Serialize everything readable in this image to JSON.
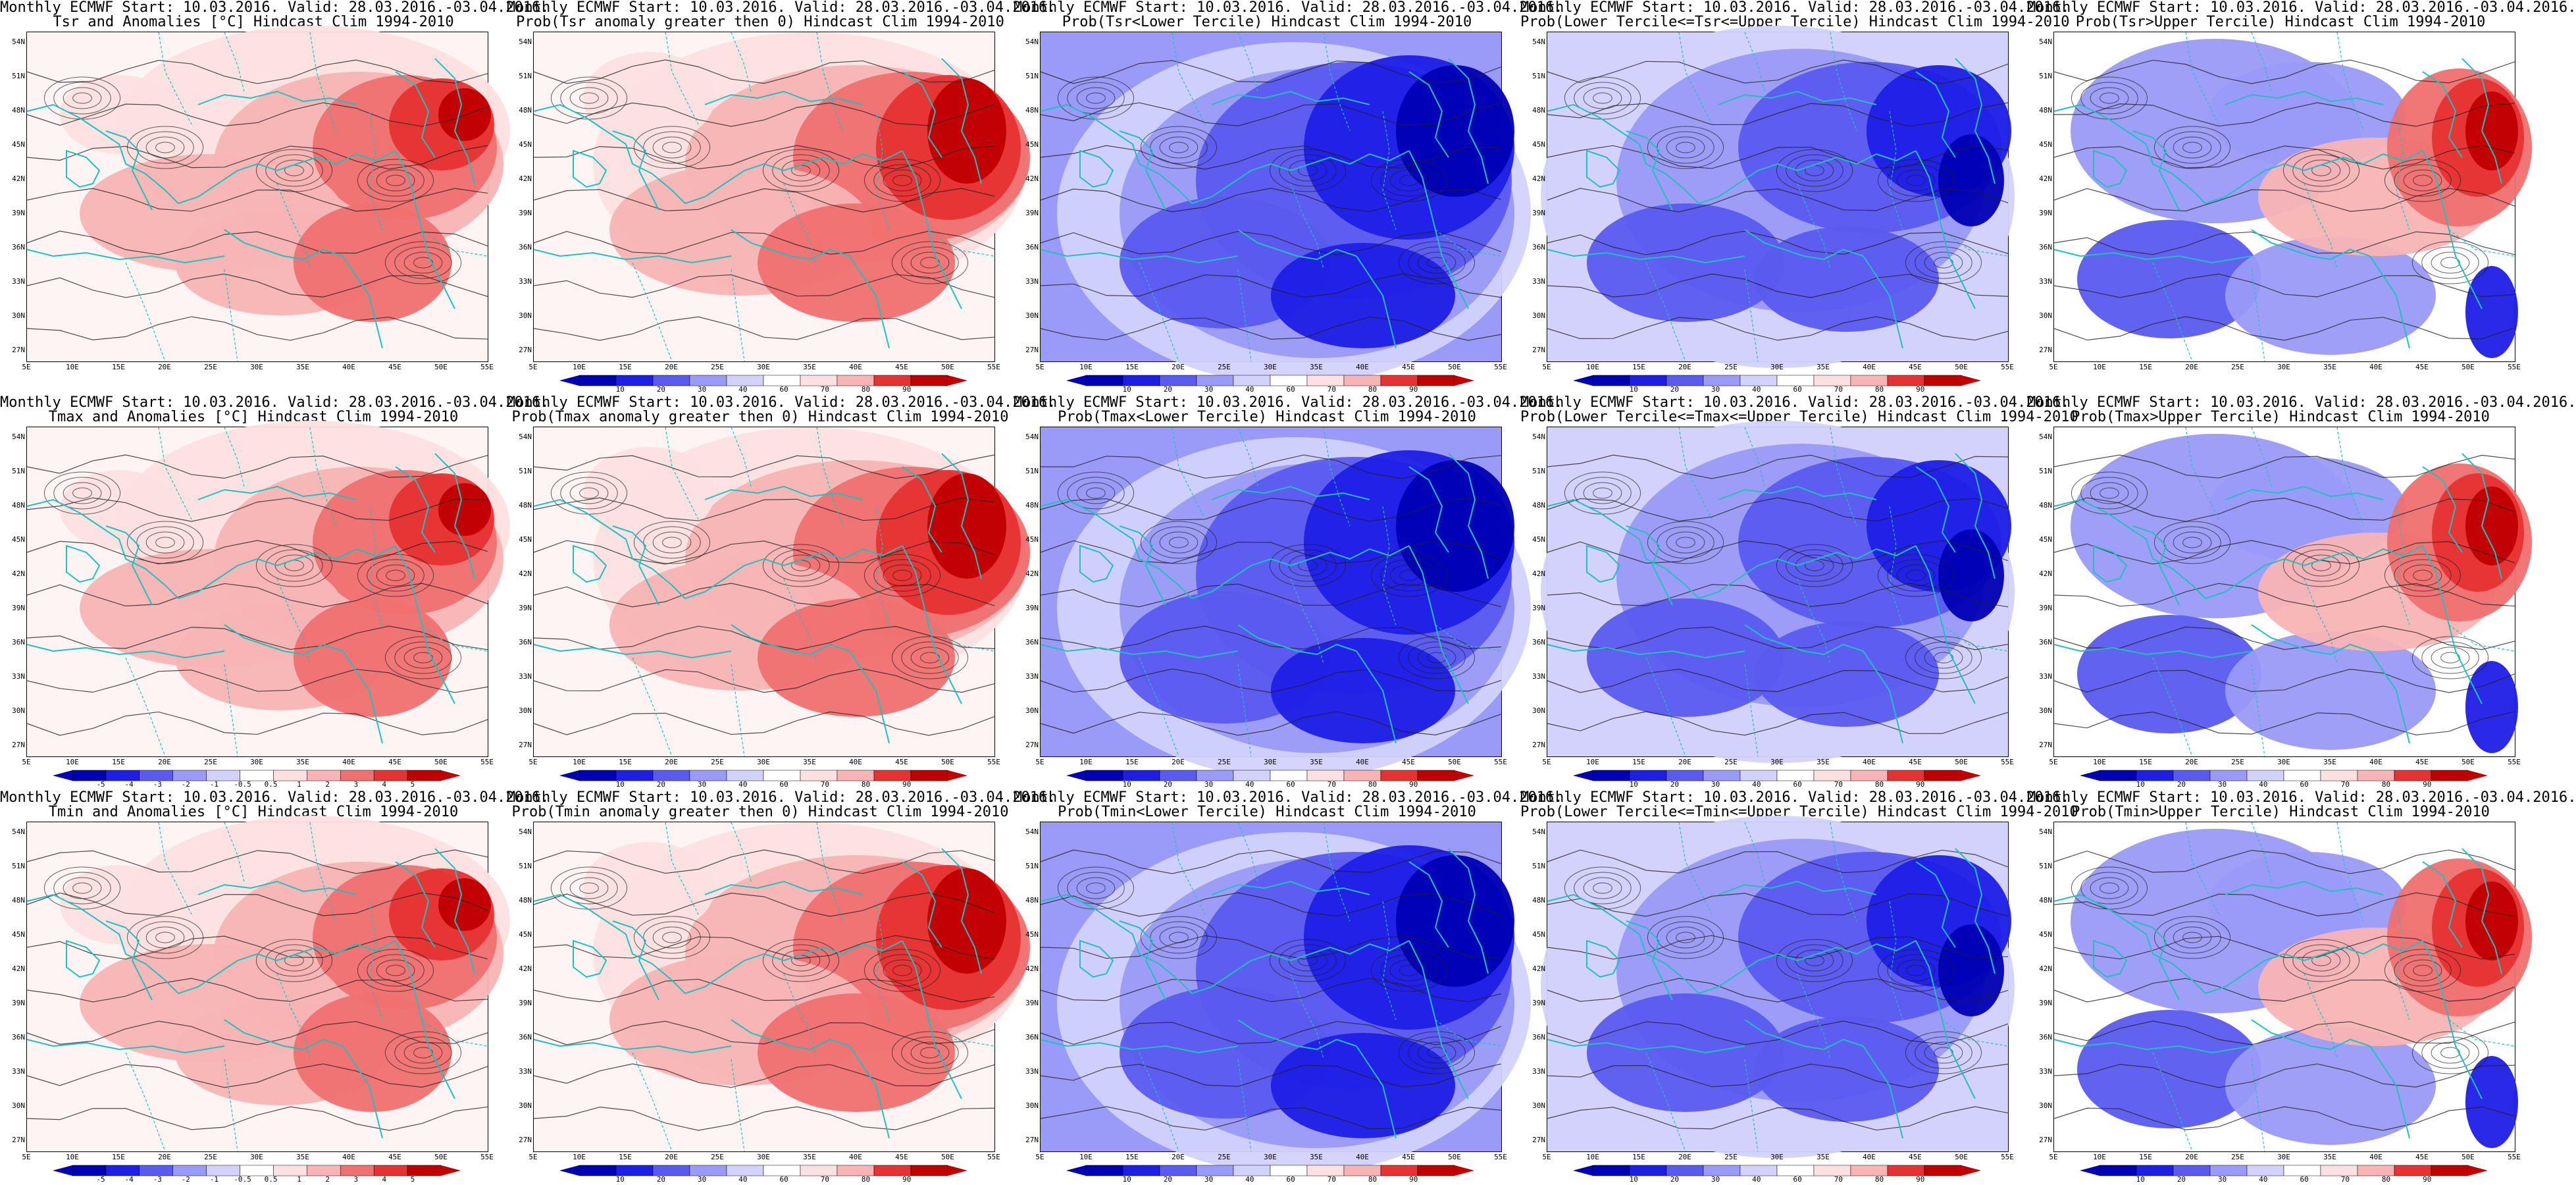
{
  "figure": {
    "line1_prefix": "Monthly ECMWF Start: 10.03.2016. Valid: 28.03.2016.-03.04.2016.",
    "lat_labels": [
      "54N",
      "51N",
      "48N",
      "45N",
      "42N",
      "39N",
      "36N",
      "33N",
      "30N",
      "27N"
    ],
    "lon_labels": [
      "5E",
      "10E",
      "15E",
      "20E",
      "25E",
      "30E",
      "35E",
      "40E",
      "45E",
      "50E",
      "55E"
    ],
    "anomaly_colorbar": [
      "-5",
      "-4",
      "-3",
      "-2",
      "-1",
      "-0.5",
      "0.5",
      "1",
      "2",
      "3",
      "4",
      "5"
    ],
    "prob_colorbar": [
      "10",
      "20",
      "30",
      "40",
      "60",
      "70",
      "80",
      "90"
    ],
    "colors": {
      "red_dark": "#c00000",
      "red": "#e63232",
      "red_mid": "#f07070",
      "red_light": "#f8b4b4",
      "red_pale": "#fde0e0",
      "blue_dark": "#0000b4",
      "blue": "#1e1ee6",
      "blue_mid": "#5a5af0",
      "blue_light": "#9a9af8",
      "blue_pale": "#d2d2fc",
      "coast": "#20c0c0",
      "contour": "#202020"
    }
  },
  "panels": [
    {
      "id": "tsr-anom",
      "line1": "Monthly ECMWF Start: 10.03.2016. Valid: 28.03.2016.-03.04.2016.",
      "line2": "Tsr and Anomalies [°C] Hindcast Clim 1994-2010",
      "scheme": "red",
      "colorbar": "none"
    },
    {
      "id": "tsr-prob-gt0",
      "line1": "Monthly ECMWF Start: 10.03.2016. Valid: 28.03.2016.-03.04.2016.",
      "line2": "Prob(Tsr anomaly greater then 0) Hindcast Clim 1994-2010",
      "scheme": "red-strong",
      "colorbar": "prob"
    },
    {
      "id": "tsr-lower",
      "line1": "Monthly ECMWF Start: 10.03.2016. Valid: 28.03.2016.-03.04.2016.",
      "line2": "Prob(Tsr<Lower Tercile) Hindcast Clim 1994-2010",
      "scheme": "blue-strong",
      "colorbar": "prob"
    },
    {
      "id": "tsr-middle",
      "line1": "Monthly ECMWF Start: 10.03.2016. Valid: 28.03.2016.-03.04.2016.",
      "line2": "Prob(Lower Tercile<=Tsr<=Upper Tercile) Hindcast Clim 1994-2010",
      "scheme": "blue",
      "colorbar": "prob"
    },
    {
      "id": "tsr-upper",
      "line1": "Monthly ECMWF Start: 10.03.2016. Valid: 28.03.2016.-03.04.2016.",
      "line2": "Prob(Tsr>Upper Tercile) Hindcast Clim 1994-2010",
      "scheme": "mixed",
      "colorbar": "none"
    },
    {
      "id": "tmax-anom",
      "line1": "Monthly ECMWF Start: 10.03.2016. Valid: 28.03.2016.-03.04.2016.",
      "line2": "Tmax and Anomalies [°C] Hindcast Clim 1994-2010",
      "scheme": "red",
      "colorbar": "anom"
    },
    {
      "id": "tmax-prob-gt0",
      "line1": "Monthly ECMWF Start: 10.03.2016. Valid: 28.03.2016.-03.04.2016.",
      "line2": "Prob(Tmax anomaly greater then 0) Hindcast Clim 1994-2010",
      "scheme": "red-strong",
      "colorbar": "prob"
    },
    {
      "id": "tmax-lower",
      "line1": "Monthly ECMWF Start: 10.03.2016. Valid: 28.03.2016.-03.04.2016.",
      "line2": "Prob(Tmax<Lower Tercile) Hindcast Clim 1994-2010",
      "scheme": "blue-strong",
      "colorbar": "prob"
    },
    {
      "id": "tmax-middle",
      "line1": "Monthly ECMWF Start: 10.03.2016. Valid: 28.03.2016.-03.04.2016.",
      "line2": "Prob(Lower Tercile<=Tmax<=Upper Tercile) Hindcast Clim 1994-2010",
      "scheme": "blue",
      "colorbar": "prob"
    },
    {
      "id": "tmax-upper",
      "line1": "Monthly ECMWF Start: 10.03.2016. Valid: 28.03.2016.-03.04.2016.",
      "line2": "Prob(Tmax>Upper Tercile) Hindcast Clim 1994-2010",
      "scheme": "mixed",
      "colorbar": "prob"
    },
    {
      "id": "tmin-anom",
      "line1": "Monthly ECMWF Start: 10.03.2016. Valid: 28.03.2016.-03.04.2016.",
      "line2": "Tmin and Anomalies [°C] Hindcast Clim 1994-2010",
      "scheme": "red",
      "colorbar": "anom"
    },
    {
      "id": "tmin-prob-gt0",
      "line1": "Monthly ECMWF Start: 10.03.2016. Valid: 28.03.2016.-03.04.2016.",
      "line2": "Prob(Tmin anomaly greater then 0) Hindcast Clim 1994-2010",
      "scheme": "red-strong",
      "colorbar": "prob"
    },
    {
      "id": "tmin-lower",
      "line1": "Monthly ECMWF Start: 10.03.2016. Valid: 28.03.2016.-03.04.2016.",
      "line2": "Prob(Tmin<Lower Tercile) Hindcast Clim 1994-2010",
      "scheme": "blue-strong",
      "colorbar": "prob"
    },
    {
      "id": "tmin-middle",
      "line1": "Monthly ECMWF Start: 10.03.2016. Valid: 28.03.2016.-03.04.2016.",
      "line2": "Prob(Lower Tercile<=Tmin<=Upper Tercile) Hindcast Clim 1994-2010",
      "scheme": "blue",
      "colorbar": "prob"
    },
    {
      "id": "tmin-upper",
      "line1": "Monthly ECMWF Start: 10.03.2016. Valid: 28.03.2016.-03.04.2016.",
      "line2": "Prob(Tmin>Upper Tercile) Hindcast Clim 1994-2010",
      "scheme": "mixed",
      "colorbar": "prob"
    }
  ]
}
